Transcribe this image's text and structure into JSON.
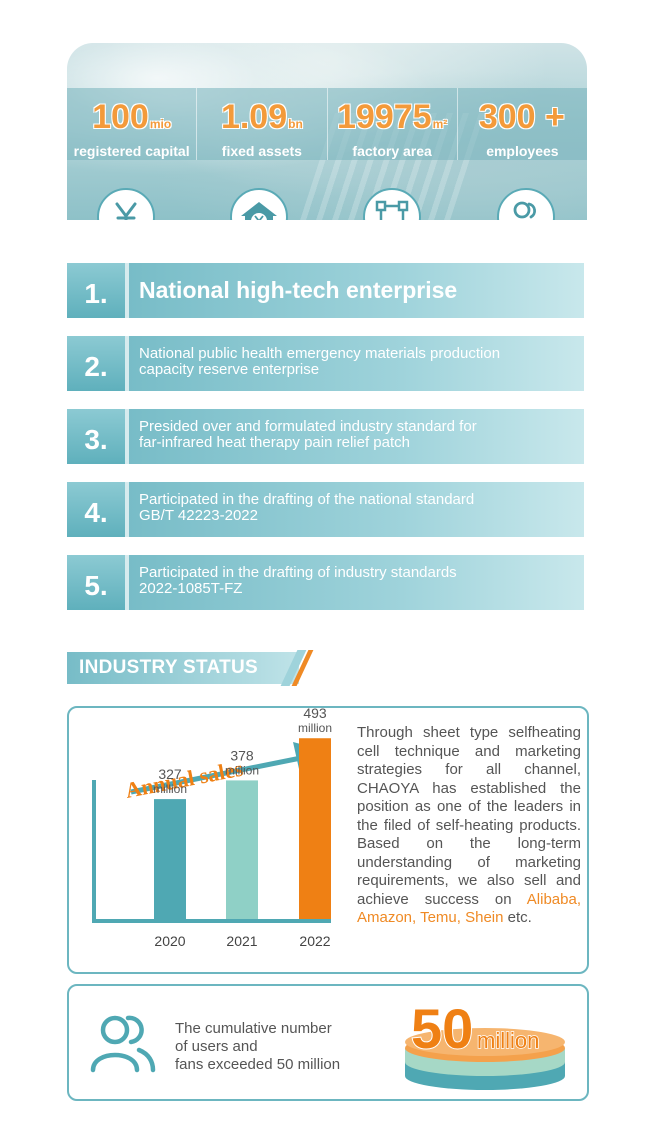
{
  "stats": [
    {
      "value": "100",
      "unit": "mio",
      "label": "registered capital"
    },
    {
      "value": "1.09",
      "unit": "bn",
      "label": "fixed assets"
    },
    {
      "value": "19975",
      "unit": "m²",
      "label": "factory area"
    },
    {
      "value": "300 +",
      "unit": "",
      "label": "employees"
    }
  ],
  "icons": [
    "yuan-icon",
    "house-yuan-icon",
    "area-square-icon",
    "users-icon"
  ],
  "list": [
    {
      "number": "1.",
      "text": "National high-tech enterprise"
    },
    {
      "number": "2.",
      "line1": "National public health emergency materials production",
      "line2": "capacity reserve enterprise"
    },
    {
      "number": "3.",
      "line1": "Presided over and formulated industry standard for",
      "line2": "far-infrared heat therapy pain relief patch"
    },
    {
      "number": "4.",
      "line1": "Participated in the drafting of the national standard",
      "line2": "GB/T 42223-2022"
    },
    {
      "number": "5.",
      "line1": "Participated in the drafting of industry standards",
      "line2": "2022-1085T-FZ"
    }
  ],
  "industry_status": {
    "heading": "INDUSTRY STATUS",
    "chart_data": {
      "type": "bar",
      "title": "Annual sales",
      "categories": [
        "2020",
        "2021",
        "2022"
      ],
      "values": [
        327,
        378,
        493
      ],
      "value_labels": [
        "327",
        "378",
        "493"
      ],
      "unit_label": "million",
      "colors": [
        "#4fa8b3",
        "#8fd0c6",
        "#ef8014"
      ]
    },
    "description": {
      "main": "Through sheet type selfheating cell technique and marketing strategies for all channel, CHAOYA has established the position as one of the leaders in the filed of self-heating products. Based on the long-term understanding of marketing requirements, we also sell and achieve success on",
      "highlight": "Alibaba, Amazon, Temu, Shein",
      "tail": "etc."
    }
  },
  "users": {
    "line1": "The cumulative number",
    "line2": "of users and",
    "line3": "fans exceeded 50 million",
    "big_number": "50",
    "big_unit": "million"
  },
  "colors": {
    "teal": "#6cb6c0",
    "orange": "#ef8a25",
    "text": "#555555"
  }
}
